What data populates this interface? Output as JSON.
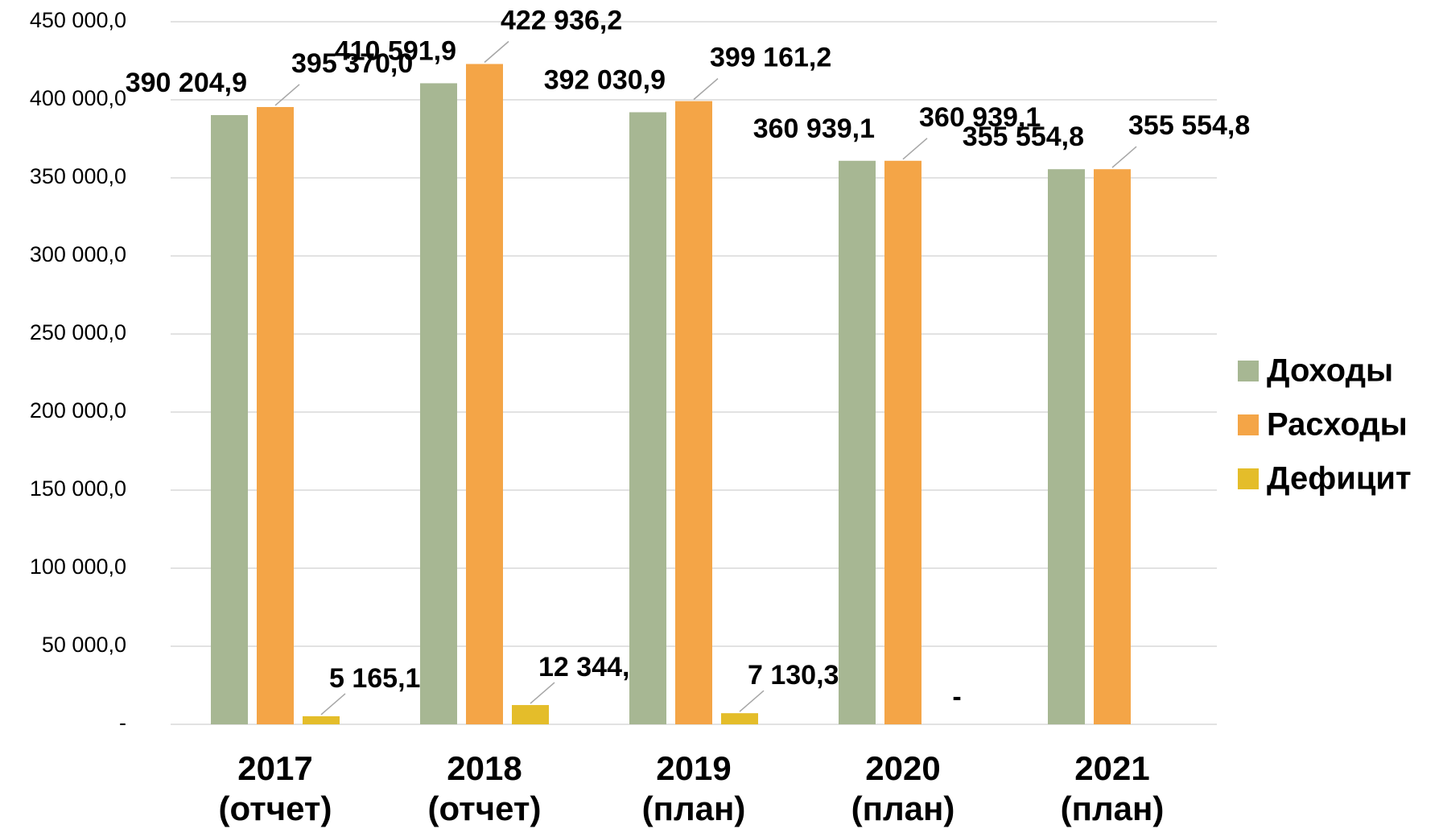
{
  "chart_data": {
    "type": "bar",
    "categories": [
      "2017\n(отчет)",
      "2018\n(отчет)",
      "2019\n(план)",
      "2020\n(план)",
      "2021\n(план)"
    ],
    "series": [
      {
        "name": "Доходы",
        "color": "#a7b793",
        "values": [
          390204.9,
          410591.9,
          392030.9,
          360939.1,
          355554.8
        ],
        "value_labels": [
          "390 204,9",
          "410 591,9",
          "392 030,9",
          "360 939,1",
          "355 554,8"
        ]
      },
      {
        "name": "Расходы",
        "color": "#f4a547",
        "values": [
          395370.0,
          422936.2,
          399161.2,
          360939.1,
          355554.8
        ],
        "value_labels": [
          "395 370,0",
          "422 936,2",
          "399 161,2",
          "360 939,1",
          "355 554,8"
        ]
      },
      {
        "name": "Дефицит",
        "color": "#e4bd2a",
        "values": [
          5165.1,
          12344.3,
          7130.3,
          0,
          null
        ],
        "value_labels": [
          "5 165,1",
          "12 344,3",
          "7 130,3",
          "-",
          null
        ]
      }
    ],
    "ylim": [
      0,
      450000
    ],
    "yticks": [
      {
        "value": 0,
        "label": "-"
      },
      {
        "value": 50000,
        "label": "50 000,0"
      },
      {
        "value": 100000,
        "label": "100 000,0"
      },
      {
        "value": 150000,
        "label": "150 000,0"
      },
      {
        "value": 200000,
        "label": "200 000,0"
      },
      {
        "value": 250000,
        "label": "250 000,0"
      },
      {
        "value": 300000,
        "label": "300 000,0"
      },
      {
        "value": 350000,
        "label": "350 000,0"
      },
      {
        "value": 400000,
        "label": "400 000,0"
      },
      {
        "value": 450000,
        "label": "450 000,0"
      }
    ],
    "grid": true,
    "legend": "right"
  }
}
